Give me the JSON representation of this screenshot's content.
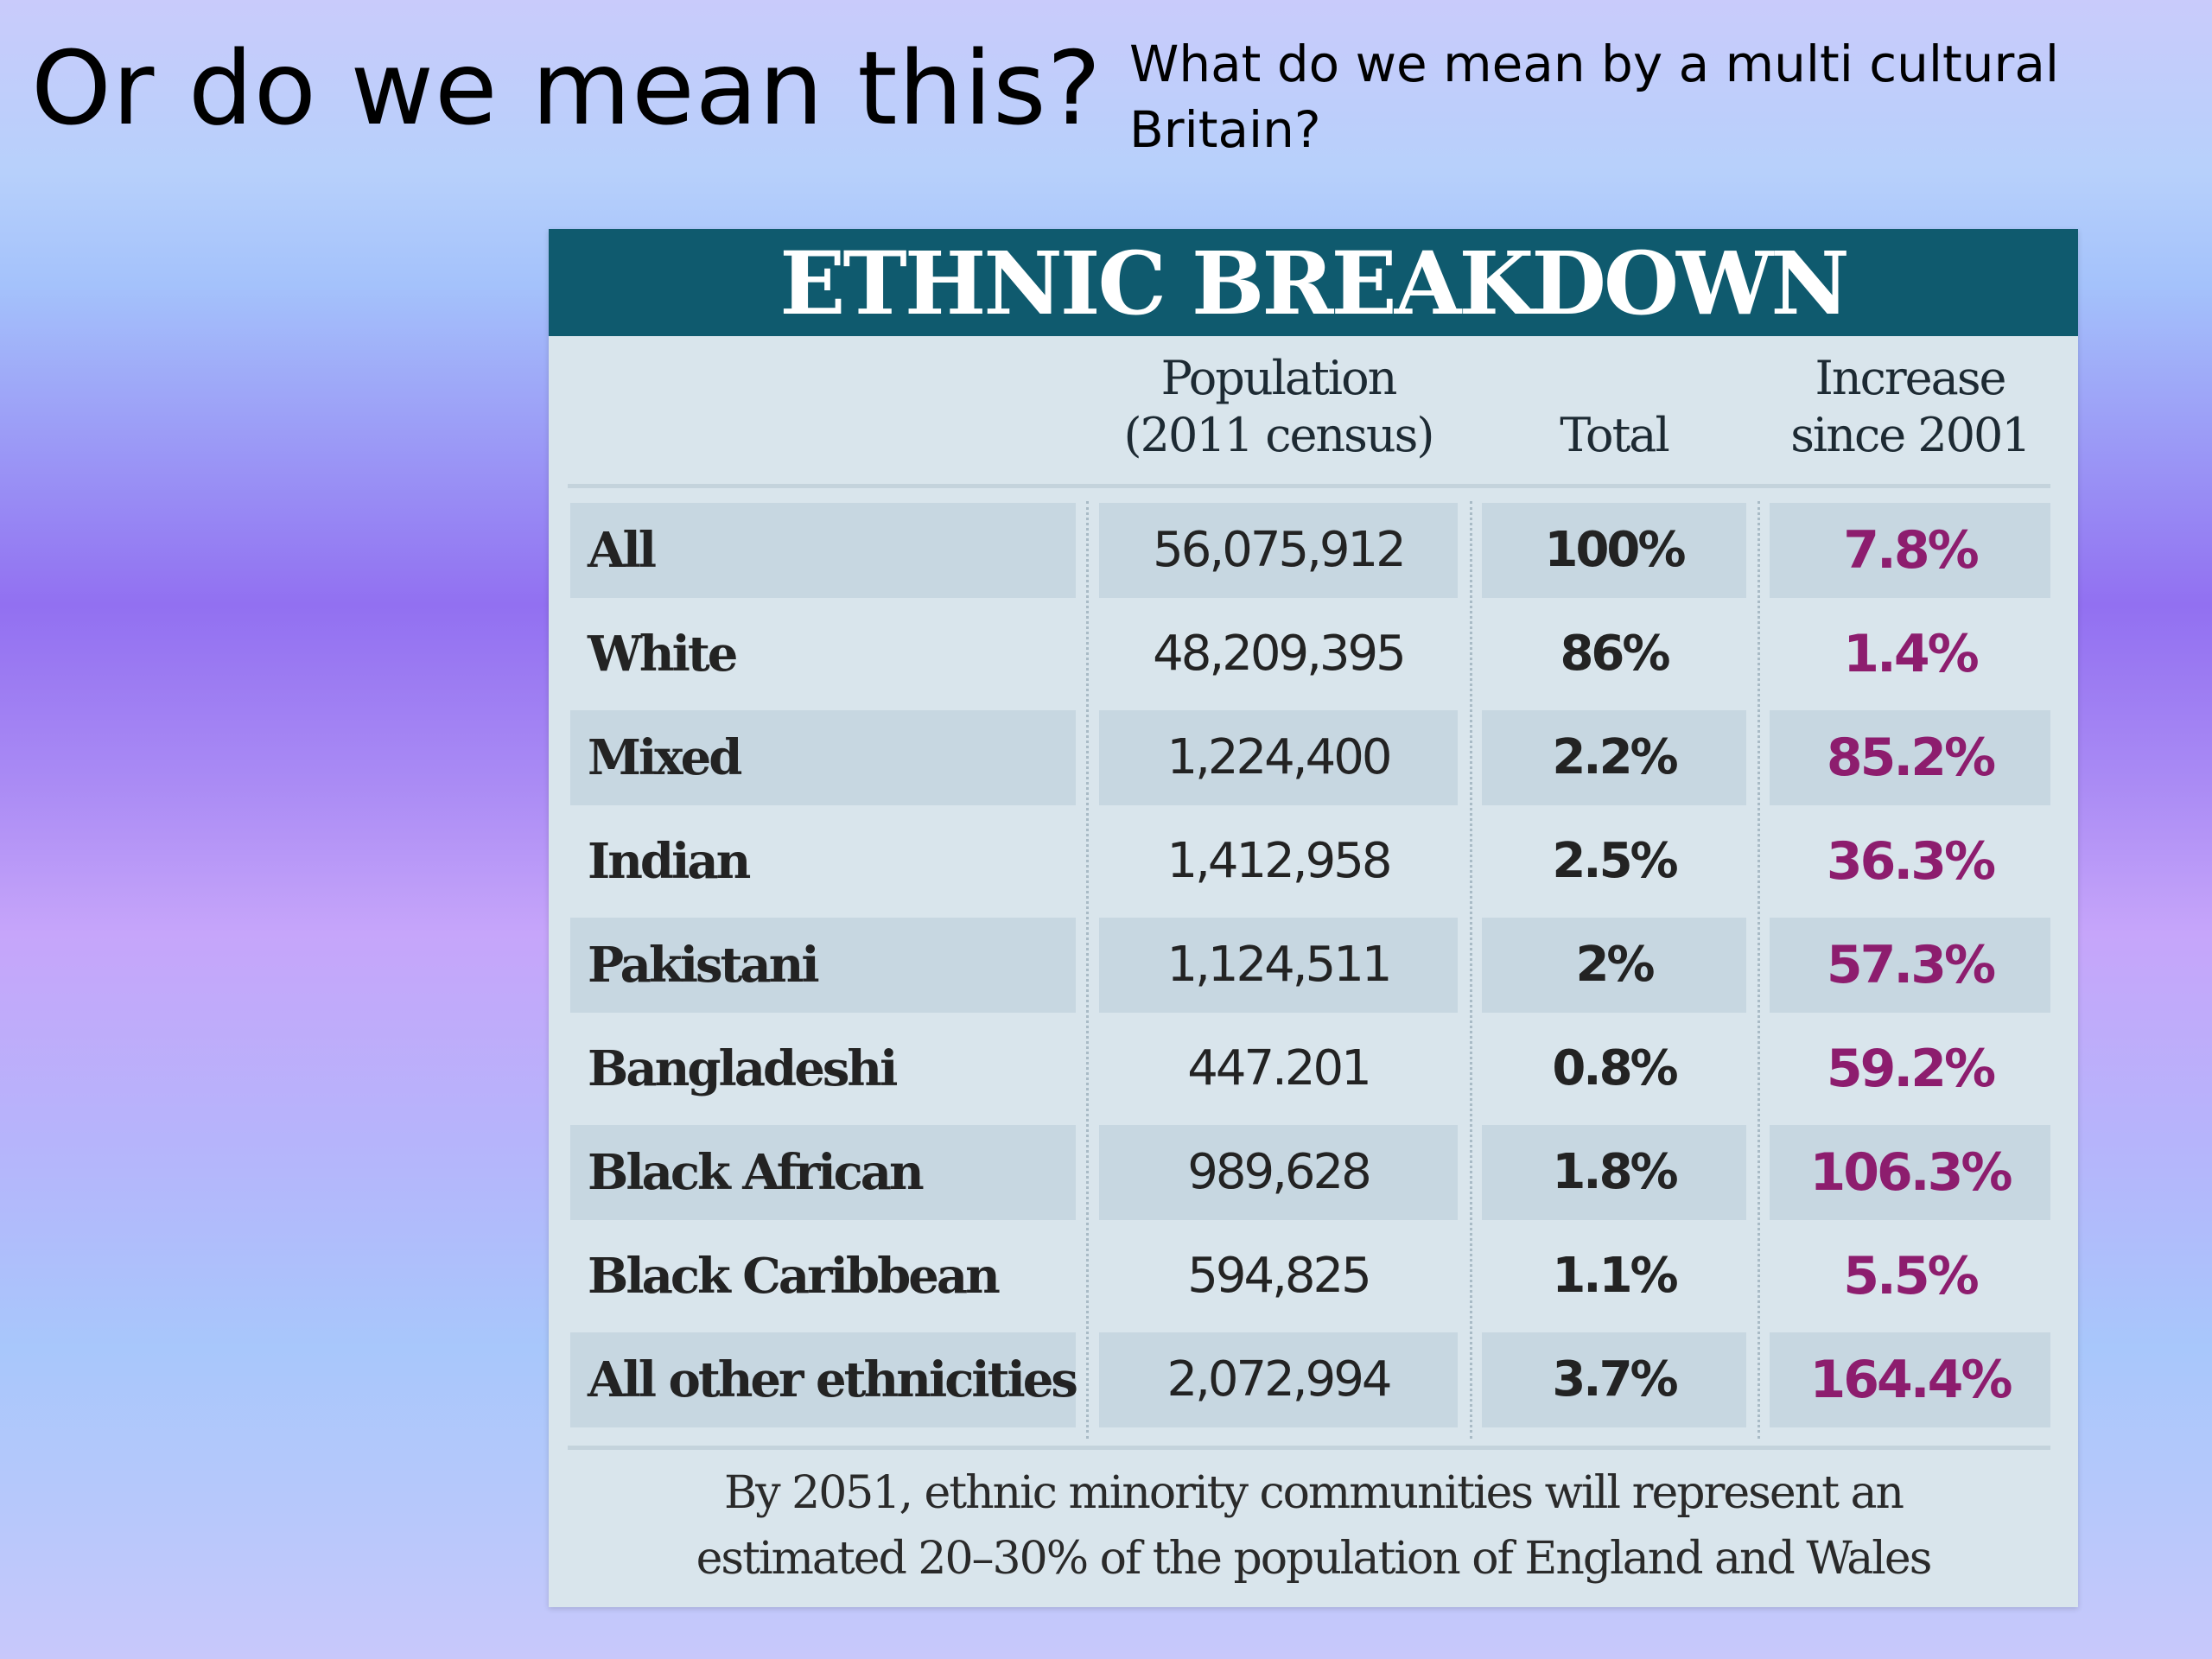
{
  "slide": {
    "title": "Or do we mean this?",
    "subtitle": "What do we mean by a multi cultural Britain?"
  },
  "table": {
    "title": "ETHNIC BREAKDOWN",
    "columns": {
      "population_line1": "Population",
      "population_line2": "(2011 census)",
      "total": "Total",
      "increase_line1": "Increase",
      "increase_line2": "since 2001"
    },
    "rows": [
      {
        "name": "All",
        "population": "56,075,912",
        "total": "100%",
        "increase": "7.8%"
      },
      {
        "name": "White",
        "population": "48,209,395",
        "total": "86%",
        "increase": "1.4%"
      },
      {
        "name": "Mixed",
        "population": "1,224,400",
        "total": "2.2%",
        "increase": "85.2%"
      },
      {
        "name": "Indian",
        "population": "1,412,958",
        "total": "2.5%",
        "increase": "36.3%"
      },
      {
        "name": "Pakistani",
        "population": "1,124,511",
        "total": "2%",
        "increase": "57.3%"
      },
      {
        "name": "Bangladeshi",
        "population": "447.201",
        "total": "0.8%",
        "increase": "59.2%"
      },
      {
        "name": "Black African",
        "population": "989,628",
        "total": "1.8%",
        "increase": "106.3%"
      },
      {
        "name": "Black Caribbean",
        "population": "594,825",
        "total": "1.1%",
        "increase": "5.5%"
      },
      {
        "name": "All other ethnicities",
        "population": "2,072,994",
        "total": "3.7%",
        "increase": "164.4%"
      }
    ],
    "footnote_line1": "By 2051, ethnic minority communities will represent an",
    "footnote_line2": "estimated 20–30% of the population of England and Wales"
  },
  "colors": {
    "header_bg": "#0f5a6e",
    "card_bg": "#d9e5ec",
    "row_shade": "#c7d7e1",
    "increase_text": "#8d1d6e"
  }
}
